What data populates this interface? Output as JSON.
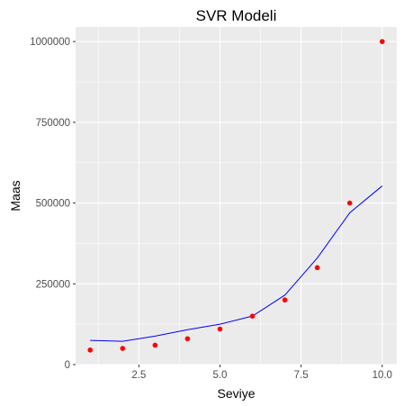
{
  "chart_data": {
    "type": "scatter",
    "title": "SVR Modeli",
    "xlabel": "Seviye",
    "ylabel": "Maas",
    "xlim": [
      0.55,
      10.45
    ],
    "ylim": [
      0,
      1045000
    ],
    "x_ticks": [
      2.5,
      5.0,
      7.5,
      10.0
    ],
    "x_tick_labels": [
      "2.5",
      "5.0",
      "7.5",
      "10.0"
    ],
    "y_ticks": [
      0,
      250000,
      500000,
      750000,
      1000000
    ],
    "y_tick_labels": [
      "0",
      "250000",
      "500000",
      "750000",
      "1000000"
    ],
    "grid": true,
    "points": {
      "color": "#ff0000",
      "x": [
        1,
        2,
        3,
        4,
        5,
        6,
        7,
        8,
        9,
        10
      ],
      "y": [
        45000,
        50000,
        60000,
        80000,
        110000,
        150000,
        200000,
        300000,
        500000,
        1000000
      ]
    },
    "line": {
      "color": "#0000ff",
      "x": [
        1,
        2,
        3,
        4,
        5,
        6,
        7,
        8,
        9,
        10
      ],
      "y": [
        75000,
        72000,
        88000,
        108000,
        125000,
        150000,
        215000,
        330000,
        470000,
        553000
      ]
    },
    "colors": {
      "panel_background": "#ebebeb",
      "grid_major": "#ffffff",
      "points": "#ff0000",
      "line": "#0000ff"
    }
  }
}
